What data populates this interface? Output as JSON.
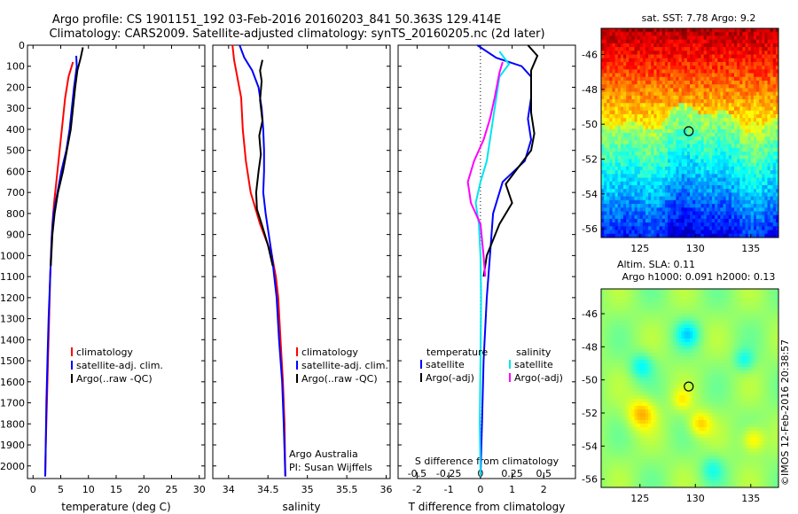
{
  "title_line1": "Argo profile: CS 1901151_192 03-Feb-2016 20160203_841 50.363S 129.414E",
  "title_line2": "Climatology: CARS2009. Satellite-adjusted climatology: synTS_20160205.nc (2d later)",
  "watermark": "©IMOS 12-Feb-2016 20:38:57",
  "colors": {
    "climatology": "#ff0000",
    "satellite": "#0000ff",
    "argo": "#000000",
    "salinity_satellite": "#00e5ee",
    "salinity_argo": "#ff00ff"
  },
  "chart_data": [
    {
      "type": "line",
      "xlabel": "temperature (deg C)",
      "xticks": [
        "0",
        "5",
        "10",
        "15",
        "20",
        "25",
        "30"
      ],
      "xlim": [
        -1,
        31
      ],
      "yticks": [
        "0",
        "100",
        "200",
        "300",
        "400",
        "500",
        "600",
        "700",
        "800",
        "900",
        "1000",
        "1100",
        "1200",
        "1300",
        "1400",
        "1500",
        "1600",
        "1700",
        "1800",
        "1900",
        "2000"
      ],
      "ylim": [
        0,
        2060
      ],
      "legend": [
        "climatology",
        "satellite-adj. clim.",
        "Argo(..raw -QC)"
      ],
      "series": [
        {
          "name": "climatology",
          "color": "#ff0000",
          "points": [
            [
              7.2,
              80
            ],
            [
              6.4,
              150
            ],
            [
              5.8,
              250
            ],
            [
              5.4,
              350
            ],
            [
              5.0,
              450
            ],
            [
              4.6,
              550
            ],
            [
              4.2,
              650
            ],
            [
              3.8,
              750
            ],
            [
              3.5,
              850
            ],
            [
              3.3,
              950
            ],
            [
              3.1,
              1100
            ],
            [
              2.9,
              1300
            ],
            [
              2.7,
              1500
            ],
            [
              2.5,
              1700
            ],
            [
              2.3,
              1900
            ],
            [
              2.2,
              2050
            ]
          ]
        },
        {
          "name": "satellite-adj. clim.",
          "color": "#0000ff",
          "points": [
            [
              7.8,
              50
            ],
            [
              7.9,
              100
            ],
            [
              7.4,
              200
            ],
            [
              7.0,
              300
            ],
            [
              6.6,
              400
            ],
            [
              6.0,
              500
            ],
            [
              5.1,
              600
            ],
            [
              4.4,
              700
            ],
            [
              3.7,
              800
            ],
            [
              3.4,
              900
            ],
            [
              3.1,
              1100
            ],
            [
              2.8,
              1300
            ],
            [
              2.6,
              1500
            ],
            [
              2.4,
              1700
            ],
            [
              2.3,
              1900
            ],
            [
              2.2,
              2050
            ]
          ]
        },
        {
          "name": "Argo(..raw -QC)",
          "color": "#000000",
          "points": [
            [
              9.0,
              10
            ],
            [
              8.6,
              60
            ],
            [
              8.0,
              120
            ],
            [
              7.6,
              200
            ],
            [
              7.2,
              300
            ],
            [
              6.8,
              400
            ],
            [
              6.1,
              500
            ],
            [
              5.4,
              600
            ],
            [
              4.5,
              700
            ],
            [
              3.9,
              800
            ],
            [
              3.5,
              900
            ],
            [
              3.2,
              1050
            ]
          ]
        }
      ]
    },
    {
      "type": "line",
      "xlabel": "salinity",
      "xticks": [
        "34",
        "34.5",
        "35",
        "35.5",
        "36"
      ],
      "xlim": [
        33.8,
        36.05
      ],
      "ylim": [
        0,
        2060
      ],
      "legend": [
        "climatology",
        "satellite-adj. clim.",
        "Argo(..raw -QC)"
      ],
      "annotation_lines": [
        "Argo Australia",
        "PI: Susan Wijffels"
      ],
      "series": [
        {
          "name": "climatology",
          "color": "#ff0000",
          "points": [
            [
              34.05,
              0
            ],
            [
              34.07,
              70
            ],
            [
              34.1,
              130
            ],
            [
              34.16,
              250
            ],
            [
              34.18,
              400
            ],
            [
              34.22,
              550
            ],
            [
              34.28,
              700
            ],
            [
              34.4,
              850
            ],
            [
              34.55,
              1000
            ],
            [
              34.6,
              1100
            ],
            [
              34.63,
              1200
            ],
            [
              34.66,
              1400
            ],
            [
              34.69,
              1600
            ],
            [
              34.71,
              1800
            ],
            [
              34.72,
              2050
            ]
          ]
        },
        {
          "name": "satellite-adj. clim.",
          "color": "#0000ff",
          "points": [
            [
              34.14,
              0
            ],
            [
              34.2,
              60
            ],
            [
              34.3,
              120
            ],
            [
              34.38,
              200
            ],
            [
              34.42,
              300
            ],
            [
              34.44,
              400
            ],
            [
              34.45,
              500
            ],
            [
              34.45,
              600
            ],
            [
              34.44,
              700
            ],
            [
              34.47,
              800
            ],
            [
              34.51,
              900
            ],
            [
              34.55,
              1000
            ],
            [
              34.58,
              1100
            ],
            [
              34.61,
              1200
            ],
            [
              34.64,
              1400
            ],
            [
              34.68,
              1600
            ],
            [
              34.7,
              1800
            ],
            [
              34.72,
              2050
            ]
          ]
        },
        {
          "name": "Argo(..raw -QC)",
          "color": "#000000",
          "points": [
            [
              34.43,
              70
            ],
            [
              34.4,
              120
            ],
            [
              34.42,
              170
            ],
            [
              34.4,
              260
            ],
            [
              34.43,
              360
            ],
            [
              34.39,
              430
            ],
            [
              34.41,
              520
            ],
            [
              34.38,
              600
            ],
            [
              34.35,
              700
            ],
            [
              34.36,
              780
            ],
            [
              34.42,
              850
            ],
            [
              34.5,
              950
            ],
            [
              34.56,
              1050
            ]
          ]
        }
      ]
    },
    {
      "type": "line",
      "xlabel": "T difference from climatology",
      "xlabel_top": "S difference from climatology",
      "xticks_t": [
        "-2",
        "-1",
        "0",
        "1",
        "2"
      ],
      "xticks_s": [
        "-0.5",
        "-0.25",
        "0",
        "0.25",
        "0.5"
      ],
      "xlim_t": [
        -2.6,
        3.0
      ],
      "ylim": [
        0,
        2060
      ],
      "legend": [
        "temperature",
        "satellite",
        "Argo(-adj)",
        "salinity",
        "satellite",
        "Argo(-adj)"
      ],
      "series": [
        {
          "name": "satellite",
          "color": "#0000ff",
          "points": [
            [
              -0.1,
              0
            ],
            [
              0.5,
              60
            ],
            [
              1.3,
              100
            ],
            [
              1.6,
              150
            ],
            [
              1.6,
              250
            ],
            [
              1.5,
              350
            ],
            [
              1.6,
              450
            ],
            [
              1.4,
              550
            ],
            [
              0.7,
              650
            ],
            [
              0.4,
              800
            ],
            [
              0.3,
              1000
            ],
            [
              0.2,
              1200
            ],
            [
              0.1,
              1500
            ],
            [
              0.05,
              1800
            ],
            [
              0,
              2050
            ]
          ]
        },
        {
          "name": "Argo(-adj)",
          "color": "#000000",
          "points": [
            [
              1.5,
              0
            ],
            [
              1.8,
              50
            ],
            [
              1.6,
              120
            ],
            [
              1.6,
              220
            ],
            [
              1.6,
              320
            ],
            [
              1.7,
              420
            ],
            [
              1.6,
              500
            ],
            [
              1.2,
              580
            ],
            [
              0.8,
              660
            ],
            [
              1.0,
              750
            ],
            [
              0.6,
              850
            ],
            [
              0.2,
              1000
            ],
            [
              0.1,
              1100
            ]
          ]
        },
        {
          "name": "satellite",
          "color": "#00e5ee",
          "points": [
            [
              0.6,
              30
            ],
            [
              0.9,
              90
            ],
            [
              0.6,
              150
            ],
            [
              0.5,
              250
            ],
            [
              0.4,
              350
            ],
            [
              0.3,
              450
            ],
            [
              0.2,
              550
            ],
            [
              0.0,
              650
            ],
            [
              -0.15,
              750
            ],
            [
              -0.05,
              850
            ],
            [
              0,
              1000
            ],
            [
              0.02,
              1200
            ],
            [
              0,
              1500
            ],
            [
              -0.02,
              1800
            ],
            [
              0,
              2050
            ]
          ]
        },
        {
          "name": "Argo(-adj)",
          "color": "#ff00ff",
          "points": [
            [
              0.7,
              80
            ],
            [
              0.6,
              130
            ],
            [
              0.45,
              250
            ],
            [
              0.3,
              350
            ],
            [
              0.1,
              450
            ],
            [
              -0.2,
              550
            ],
            [
              -0.4,
              650
            ],
            [
              -0.3,
              750
            ],
            [
              0,
              850
            ],
            [
              0.1,
              1000
            ],
            [
              0.15,
              1100
            ]
          ]
        }
      ]
    },
    {
      "type": "heatmap",
      "title": "sat. SST: 7.78 Argo: 9.2",
      "xticks": [
        "125",
        "130",
        "135"
      ],
      "yticks": [
        "-46",
        "-48",
        "-50",
        "-52",
        "-54",
        "-56"
      ],
      "xlim": [
        121.5,
        137.5
      ],
      "ylim": [
        -56.5,
        -44.5
      ],
      "argo_position": [
        129.4,
        -50.4
      ]
    },
    {
      "type": "heatmap",
      "title_line1": "Altim. SLA: 0.11",
      "title_line2": "Argo h1000: 0.091 h2000: 0.13",
      "xticks": [
        "125",
        "130",
        "135"
      ],
      "yticks": [
        "-46",
        "-48",
        "-50",
        "-52",
        "-54",
        "-56"
      ],
      "xlim": [
        121.5,
        137.5
      ],
      "ylim": [
        -56.5,
        -44.5
      ],
      "argo_position": [
        129.4,
        -50.4
      ]
    }
  ]
}
